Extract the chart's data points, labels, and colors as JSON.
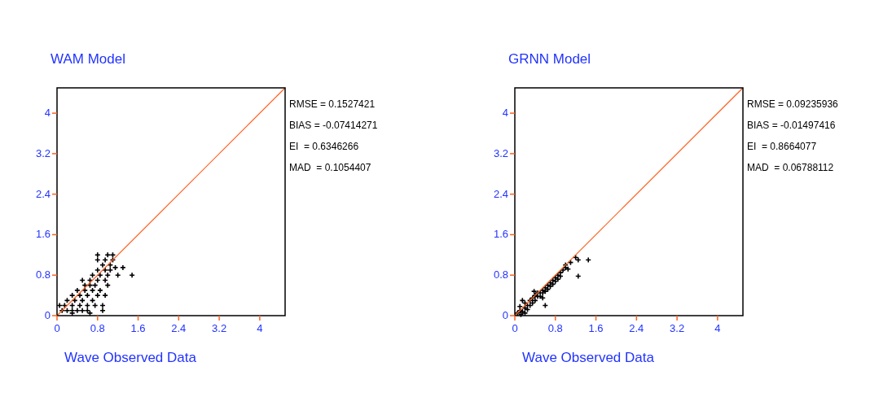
{
  "chart_data": [
    {
      "type": "scatter",
      "title": "WAM Model",
      "xlabel": "Wave Observed Data",
      "xlim": [
        0,
        4.5
      ],
      "ylim": [
        0,
        4.5
      ],
      "xticks": [
        0,
        0.8,
        1.6,
        2.4,
        3.2,
        4
      ],
      "yticks": [
        0,
        0.8,
        1.6,
        2.4,
        3.2,
        4
      ],
      "grid": false,
      "annotations": [
        "RMSE = 0.1527421",
        "BIAS = -0.07414271",
        "EI  = 0.6346266",
        "MAD  = 0.1054407"
      ],
      "series": [
        {
          "marker": "cross",
          "color": "#000000",
          "x": [
            0.1,
            0.2,
            0.3,
            0.4,
            0.5,
            0.6,
            0.05,
            0.15,
            0.3,
            0.45,
            0.6,
            0.75,
            0.9,
            0.2,
            0.35,
            0.5,
            0.7,
            0.3,
            0.45,
            0.6,
            0.8,
            0.95,
            0.4,
            0.55,
            0.7,
            0.85,
            0.55,
            0.65,
            0.75,
            0.5,
            0.65,
            0.8,
            0.95,
            0.7,
            0.85,
            1.0,
            1.2,
            1.48,
            0.8,
            0.95,
            1.05,
            0.9,
            1.05,
            1.3,
            0.8,
            0.95,
            1.1,
            0.8,
            1.0,
            1.1,
            0.3,
            0.65,
            0.9,
            1.0,
            1.15
          ],
          "values": [
            0.1,
            0.1,
            0.1,
            0.1,
            0.1,
            0.1,
            0.2,
            0.2,
            0.2,
            0.2,
            0.2,
            0.2,
            0.2,
            0.3,
            0.3,
            0.3,
            0.3,
            0.4,
            0.4,
            0.4,
            0.4,
            0.4,
            0.5,
            0.5,
            0.5,
            0.5,
            0.6,
            0.6,
            0.6,
            0.7,
            0.7,
            0.7,
            0.7,
            0.8,
            0.8,
            0.8,
            0.8,
            0.8,
            0.9,
            0.9,
            0.9,
            1.0,
            1.0,
            0.95,
            1.1,
            1.1,
            1.1,
            1.2,
            1.2,
            1.2,
            0.05,
            0.05,
            0.1,
            0.6,
            0.95
          ]
        },
        {
          "type": "line",
          "color": "#ff6020",
          "x": [
            0,
            4.5
          ],
          "values": [
            0,
            4.5
          ]
        }
      ]
    },
    {
      "type": "scatter",
      "title": "GRNN Model",
      "xlabel": "Wave Observed Data",
      "xlim": [
        0,
        4.5
      ],
      "ylim": [
        0,
        4.5
      ],
      "xticks": [
        0,
        0.8,
        1.6,
        2.4,
        3.2,
        4
      ],
      "yticks": [
        0,
        0.8,
        1.6,
        2.4,
        3.2,
        4
      ],
      "grid": false,
      "annotations": [
        "RMSE = 0.09235936",
        "BIAS = -0.01497416",
        "EI  = 0.8664077",
        "MAD  = 0.06788112"
      ],
      "series": [
        {
          "marker": "cross",
          "color": "#000000",
          "x": [
            0.05,
            0.1,
            0.1,
            0.15,
            0.2,
            0.2,
            0.25,
            0.3,
            0.3,
            0.35,
            0.35,
            0.4,
            0.4,
            0.45,
            0.45,
            0.5,
            0.5,
            0.55,
            0.55,
            0.6,
            0.6,
            0.65,
            0.65,
            0.7,
            0.7,
            0.75,
            0.75,
            0.8,
            0.8,
            0.85,
            0.85,
            0.9,
            0.9,
            0.95,
            1.0,
            1.0,
            1.05,
            1.1,
            1.2,
            1.25,
            1.45,
            1.25,
            0.6,
            0.15,
            0.25,
            0.55,
            0.38,
            0.12,
            0.2
          ],
          "values": [
            0.05,
            0.1,
            0.18,
            0.08,
            0.15,
            0.25,
            0.2,
            0.3,
            0.2,
            0.35,
            0.25,
            0.4,
            0.3,
            0.38,
            0.45,
            0.45,
            0.38,
            0.5,
            0.45,
            0.55,
            0.48,
            0.6,
            0.52,
            0.65,
            0.58,
            0.7,
            0.62,
            0.75,
            0.68,
            0.8,
            0.72,
            0.85,
            0.78,
            0.9,
            0.95,
            1.0,
            0.92,
            1.05,
            1.15,
            1.1,
            1.1,
            0.78,
            0.2,
            0.3,
            0.12,
            0.35,
            0.48,
            0.02,
            0.05
          ]
        },
        {
          "type": "line",
          "color": "#ff6020",
          "x": [
            0,
            4.5
          ],
          "values": [
            0,
            4.5
          ]
        }
      ]
    }
  ]
}
